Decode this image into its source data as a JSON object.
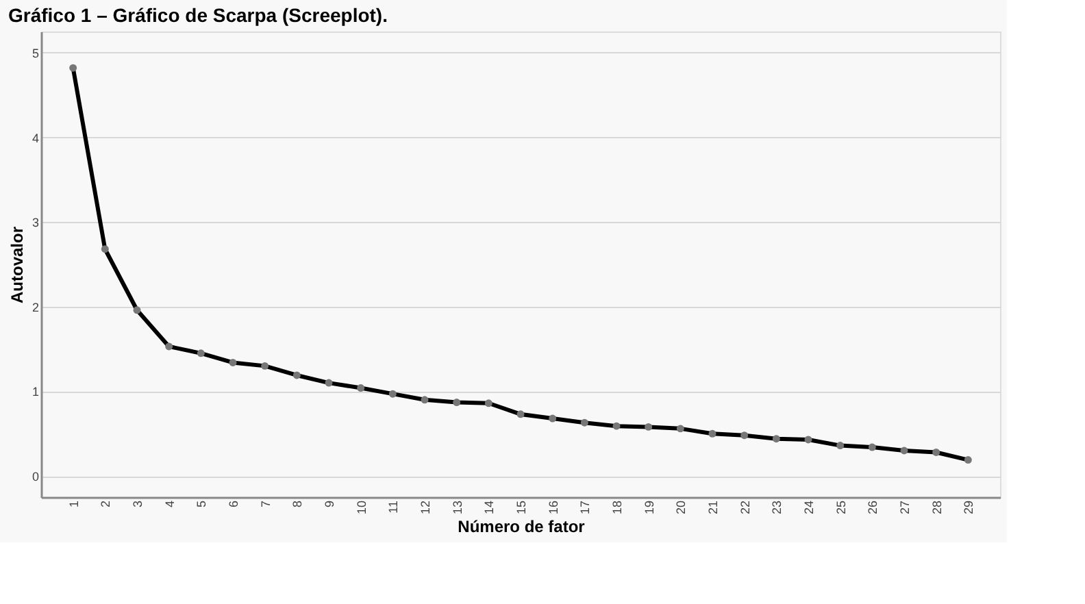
{
  "chart_data": {
    "type": "line",
    "title": "Gráfico 1 – Gráfico de Scarpa (Screeplot).",
    "xlabel": "Número de fator",
    "ylabel": "Autovalor",
    "categories": [
      "1",
      "2",
      "3",
      "4",
      "5",
      "6",
      "7",
      "8",
      "9",
      "10",
      "11",
      "12",
      "13",
      "14",
      "15",
      "16",
      "17",
      "18",
      "19",
      "20",
      "21",
      "22",
      "23",
      "24",
      "25",
      "26",
      "27",
      "28",
      "29"
    ],
    "series": [
      {
        "color": "#000000",
        "values": [
          4.82,
          2.68,
          1.96,
          1.53,
          1.45,
          1.34,
          1.3,
          1.19,
          1.1,
          1.04,
          0.97,
          0.9,
          0.87,
          0.86,
          0.73,
          0.68,
          0.63,
          0.59,
          0.58,
          0.56,
          0.5,
          0.48,
          0.44,
          0.43,
          0.36,
          0.34,
          0.3,
          0.28,
          0.19
        ]
      }
    ],
    "ylim": [
      -0.25,
      5.25
    ],
    "yticks": [
      0,
      1,
      2,
      3,
      4,
      5
    ],
    "grid": "y",
    "marker": "circle",
    "line_style": "solid"
  }
}
